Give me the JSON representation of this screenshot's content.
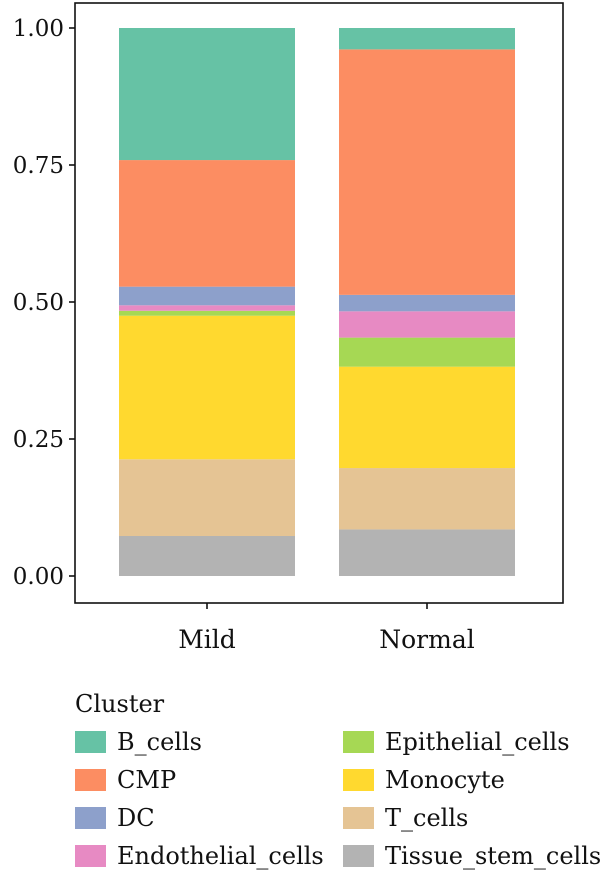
{
  "chart_data": {
    "type": "bar",
    "stacked": true,
    "categories": [
      "Mild",
      "Normal"
    ],
    "series": [
      {
        "name": "Tissue_stem_cells",
        "color": "#b3b3b3",
        "values": [
          0.073,
          0.085
        ]
      },
      {
        "name": "T_cells",
        "color": "#e5c494",
        "values": [
          0.14,
          0.112
        ]
      },
      {
        "name": "Monocyte",
        "color": "#ffd92f",
        "values": [
          0.262,
          0.185
        ]
      },
      {
        "name": "Epithelial_cells",
        "color": "#a6d854",
        "values": [
          0.009,
          0.053
        ]
      },
      {
        "name": "Endothelial_cells",
        "color": "#e78ac3",
        "values": [
          0.01,
          0.048
        ]
      },
      {
        "name": "DC",
        "color": "#8da0cb",
        "values": [
          0.034,
          0.03
        ]
      },
      {
        "name": "CMP",
        "color": "#fc8d62",
        "values": [
          0.231,
          0.448
        ]
      },
      {
        "name": "B_cells",
        "color": "#66c2a5",
        "values": [
          0.241,
          0.039
        ]
      }
    ],
    "ylim": [
      0,
      1
    ],
    "yticks": [
      "0.00",
      "0.25",
      "0.50",
      "0.75",
      "1.00"
    ],
    "legend": {
      "title": "Cluster",
      "placement": "bottom",
      "order": [
        "B_cells",
        "CMP",
        "DC",
        "Endothelial_cells",
        "Epithelial_cells",
        "Monocyte",
        "T_cells",
        "Tissue_stem_cells"
      ]
    },
    "grid": false
  }
}
